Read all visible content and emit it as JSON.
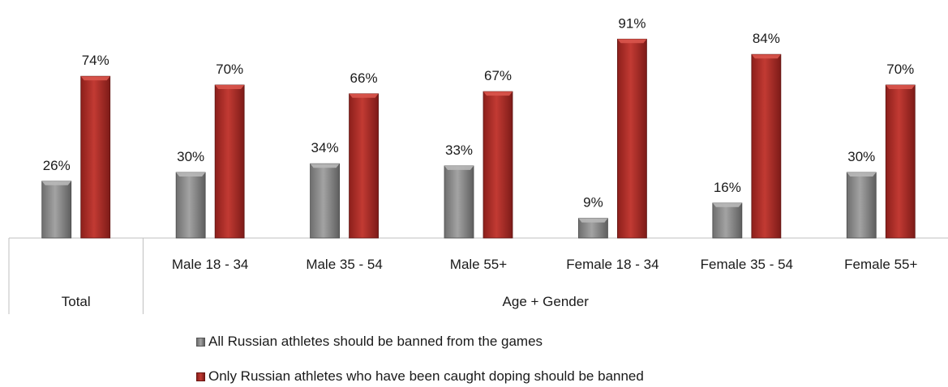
{
  "chart_data": {
    "type": "bar",
    "title": "",
    "xlabel": "",
    "ylabel": "",
    "ylim": [
      0,
      100
    ],
    "grid": false,
    "legend_position": "bottom",
    "groups": [
      {
        "label": "Total",
        "categories": [
          "Total"
        ]
      },
      {
        "label": "Age + Gender",
        "categories": [
          "Male 18 - 34",
          "Male 35 - 54",
          "Male 55+",
          "Female 18 - 34",
          "Female 35 - 54",
          "Female 55+"
        ]
      }
    ],
    "categories": [
      "Total",
      "Male 18 - 34",
      "Male 35 - 54",
      "Male 55+",
      "Female 18 - 34",
      "Female 35 - 54",
      "Female 55+"
    ],
    "series": [
      {
        "name": "All Russian athletes should be banned from the games",
        "color": "#8a8a8a",
        "values": [
          26,
          30,
          34,
          33,
          9,
          16,
          30
        ],
        "labels": [
          "26%",
          "30%",
          "34%",
          "33%",
          "9%",
          "16%",
          "30%"
        ]
      },
      {
        "name": "Only Russian athletes who have been caught doping should be banned",
        "color": "#a8302c",
        "values": [
          74,
          70,
          66,
          67,
          91,
          84,
          70
        ],
        "labels": [
          "74%",
          "70%",
          "66%",
          "67%",
          "91%",
          "84%",
          "70%"
        ]
      }
    ]
  }
}
